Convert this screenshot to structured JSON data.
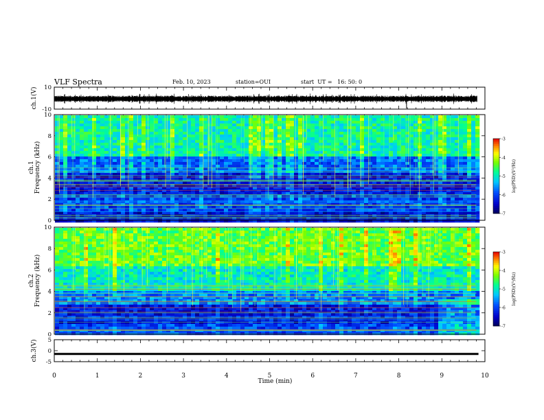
{
  "header": {
    "title": "VLF Spectra",
    "date": "Feb. 10, 2023",
    "station": "station=OUI",
    "start": "start  UT =   16: 50: 0"
  },
  "chart_data": [
    {
      "type": "line",
      "panel": "ch1-waveform",
      "ylabel": "ch.1(V)",
      "ylim": [
        -10,
        10
      ],
      "yticks": [
        -10,
        10
      ],
      "xlim": [
        0,
        10
      ],
      "series": [
        {
          "values_description_level": 0,
          "amplitude_approx": 1.2
        }
      ],
      "color": "#000000"
    },
    {
      "type": "heatmap",
      "panel": "ch1-spectrogram",
      "ylabel": "ch.1\nFrequency  (kHz)",
      "ylim": [
        0,
        10
      ],
      "yticks": [
        0,
        2,
        4,
        6,
        8,
        10
      ],
      "xlim": [
        0,
        9.8
      ],
      "colorbar": {
        "label": "log(PSD)(V²/Hz)",
        "range": [
          -7,
          -3
        ],
        "ticks": [
          -3,
          -4,
          -5,
          -6,
          -7
        ]
      },
      "bands": [
        {
          "from": 6.2,
          "to": 10,
          "level": -4.9
        },
        {
          "from": 4.6,
          "to": 6.2,
          "level": -5.8
        },
        {
          "from": 2.6,
          "to": 4.6,
          "level": -6.3
        },
        {
          "from": 1.0,
          "to": 2.6,
          "level": -6.0
        },
        {
          "from": 0,
          "to": 1.0,
          "level": -6.4
        }
      ]
    },
    {
      "type": "heatmap",
      "panel": "ch2-spectrogram",
      "ylabel": "ch.2\nFrequency  (kHz)",
      "ylim": [
        0,
        10
      ],
      "yticks": [
        0,
        2,
        4,
        6,
        8,
        10
      ],
      "xlim": [
        0,
        9.8
      ],
      "colorbar": {
        "label": "log(PSD)(V²/Hz)",
        "range": [
          -7,
          -3
        ],
        "ticks": [
          -3,
          -4,
          -5,
          -6,
          -7
        ]
      },
      "bands": [
        {
          "from": 6.5,
          "to": 10,
          "level": -4.4
        },
        {
          "from": 4.2,
          "to": 6.5,
          "level": -5.0
        },
        {
          "from": 2.8,
          "to": 4.2,
          "level": -5.7
        },
        {
          "from": 1.0,
          "to": 2.8,
          "level": -6.3
        },
        {
          "from": 0,
          "to": 1.0,
          "level": -6.0
        }
      ]
    },
    {
      "type": "line",
      "panel": "ch3-waveform",
      "ylabel": "ch.3(V)",
      "ylim": [
        -5,
        5
      ],
      "yticks": [
        -5,
        0,
        5
      ],
      "xlim": [
        0,
        10
      ],
      "series": [
        {
          "level": -1.5
        }
      ],
      "color": "#000000"
    }
  ],
  "xaxis": {
    "label": "Time  (min)",
    "ticks": [
      "0",
      "1",
      "2",
      "3",
      "4",
      "5",
      "6",
      "7",
      "8",
      "9",
      "10"
    ]
  }
}
